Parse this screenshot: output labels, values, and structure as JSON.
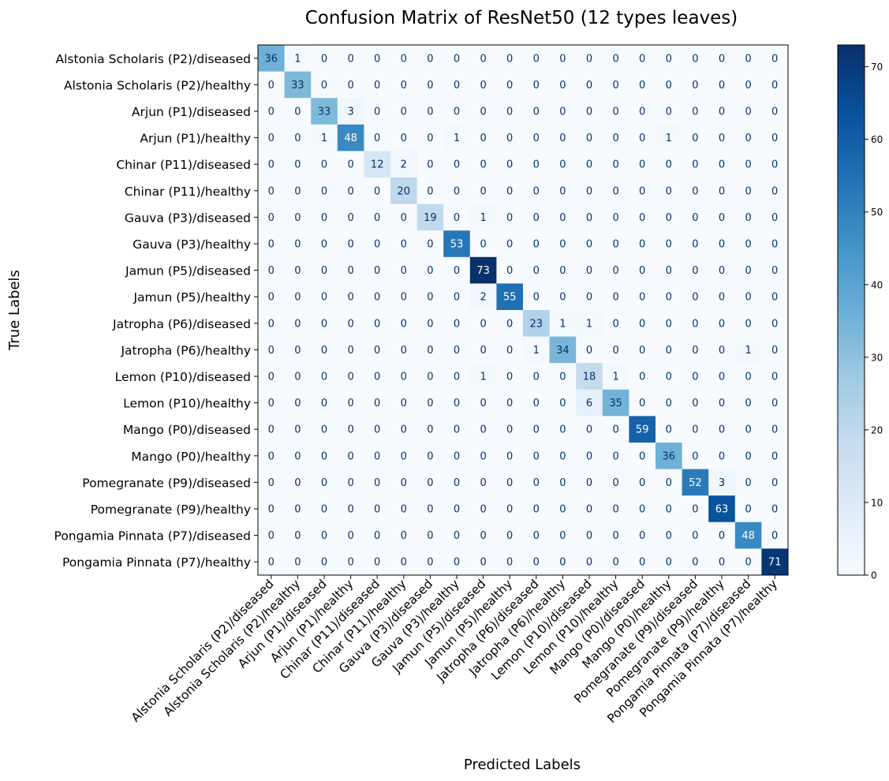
{
  "chart_data": {
    "type": "heatmap",
    "title": "Confusion Matrix of ResNet50 (12 types leaves)",
    "xlabel": "Predicted Labels",
    "ylabel": "True Labels",
    "colormap": "Blues",
    "colorbar": {
      "min": 0,
      "max": 73,
      "ticks": [
        0,
        10,
        20,
        30,
        40,
        50,
        60,
        70
      ]
    },
    "labels": [
      "Alstonia Scholaris (P2)/diseased",
      "Alstonia Scholaris (P2)/healthy",
      "Arjun (P1)/diseased",
      "Arjun (P1)/healthy",
      "Chinar (P11)/diseased",
      "Chinar (P11)/healthy",
      "Gauva (P3)/diseased",
      "Gauva (P3)/healthy",
      "Jamun (P5)/diseased",
      "Jamun (P5)/healthy",
      "Jatropha (P6)/diseased",
      "Jatropha (P6)/healthy",
      "Lemon (P10)/diseased",
      "Lemon (P10)/healthy",
      "Mango (P0)/diseased",
      "Mango (P0)/healthy",
      "Pomegranate (P9)/diseased",
      "Pomegranate (P9)/healthy",
      "Pongamia Pinnata (P7)/diseased",
      "Pongamia Pinnata (P7)/healthy"
    ],
    "matrix": [
      [
        36,
        1,
        0,
        0,
        0,
        0,
        0,
        0,
        0,
        0,
        0,
        0,
        0,
        0,
        0,
        0,
        0,
        0,
        0,
        0
      ],
      [
        0,
        33,
        0,
        0,
        0,
        0,
        0,
        0,
        0,
        0,
        0,
        0,
        0,
        0,
        0,
        0,
        0,
        0,
        0,
        0
      ],
      [
        0,
        0,
        33,
        3,
        0,
        0,
        0,
        0,
        0,
        0,
        0,
        0,
        0,
        0,
        0,
        0,
        0,
        0,
        0,
        0
      ],
      [
        0,
        0,
        1,
        48,
        0,
        0,
        0,
        1,
        0,
        0,
        0,
        0,
        0,
        0,
        0,
        1,
        0,
        0,
        0,
        0
      ],
      [
        0,
        0,
        0,
        0,
        12,
        2,
        0,
        0,
        0,
        0,
        0,
        0,
        0,
        0,
        0,
        0,
        0,
        0,
        0,
        0
      ],
      [
        0,
        0,
        0,
        0,
        0,
        20,
        0,
        0,
        0,
        0,
        0,
        0,
        0,
        0,
        0,
        0,
        0,
        0,
        0,
        0
      ],
      [
        0,
        0,
        0,
        0,
        0,
        0,
        19,
        0,
        1,
        0,
        0,
        0,
        0,
        0,
        0,
        0,
        0,
        0,
        0,
        0
      ],
      [
        0,
        0,
        0,
        0,
        0,
        0,
        0,
        53,
        0,
        0,
        0,
        0,
        0,
        0,
        0,
        0,
        0,
        0,
        0,
        0
      ],
      [
        0,
        0,
        0,
        0,
        0,
        0,
        0,
        0,
        73,
        0,
        0,
        0,
        0,
        0,
        0,
        0,
        0,
        0,
        0,
        0
      ],
      [
        0,
        0,
        0,
        0,
        0,
        0,
        0,
        0,
        2,
        55,
        0,
        0,
        0,
        0,
        0,
        0,
        0,
        0,
        0,
        0
      ],
      [
        0,
        0,
        0,
        0,
        0,
        0,
        0,
        0,
        0,
        0,
        23,
        1,
        1,
        0,
        0,
        0,
        0,
        0,
        0,
        0
      ],
      [
        0,
        0,
        0,
        0,
        0,
        0,
        0,
        0,
        0,
        0,
        1,
        34,
        0,
        0,
        0,
        0,
        0,
        0,
        1,
        0
      ],
      [
        0,
        0,
        0,
        0,
        0,
        0,
        0,
        0,
        1,
        0,
        0,
        0,
        18,
        1,
        0,
        0,
        0,
        0,
        0,
        0
      ],
      [
        0,
        0,
        0,
        0,
        0,
        0,
        0,
        0,
        0,
        0,
        0,
        0,
        6,
        35,
        0,
        0,
        0,
        0,
        0,
        0
      ],
      [
        0,
        0,
        0,
        0,
        0,
        0,
        0,
        0,
        0,
        0,
        0,
        0,
        0,
        0,
        59,
        0,
        0,
        0,
        0,
        0
      ],
      [
        0,
        0,
        0,
        0,
        0,
        0,
        0,
        0,
        0,
        0,
        0,
        0,
        0,
        0,
        0,
        36,
        0,
        0,
        0,
        0
      ],
      [
        0,
        0,
        0,
        0,
        0,
        0,
        0,
        0,
        0,
        0,
        0,
        0,
        0,
        0,
        0,
        0,
        52,
        3,
        0,
        0
      ],
      [
        0,
        0,
        0,
        0,
        0,
        0,
        0,
        0,
        0,
        0,
        0,
        0,
        0,
        0,
        0,
        0,
        0,
        63,
        0,
        0
      ],
      [
        0,
        0,
        0,
        0,
        0,
        0,
        0,
        0,
        0,
        0,
        0,
        0,
        0,
        0,
        0,
        0,
        0,
        0,
        48,
        0
      ],
      [
        0,
        0,
        0,
        0,
        0,
        0,
        0,
        0,
        0,
        0,
        0,
        0,
        0,
        0,
        0,
        0,
        0,
        0,
        0,
        71
      ]
    ]
  }
}
